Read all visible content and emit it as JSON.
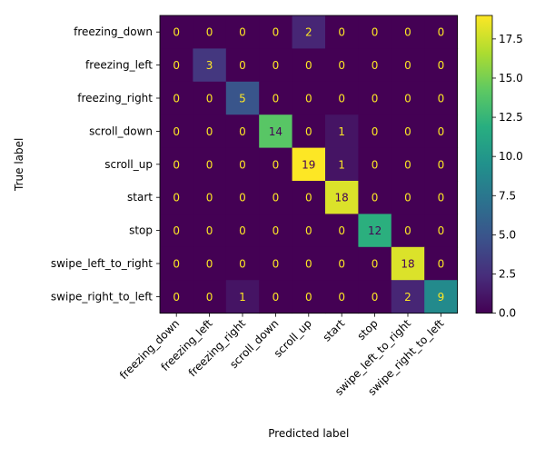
{
  "chart_data": {
    "type": "heatmap",
    "title": "",
    "xlabel": "Predicted label",
    "ylabel": "True label",
    "row_labels": [
      "freezing_down",
      "freezing_left",
      "freezing_right",
      "scroll_down",
      "scroll_up",
      "start",
      "stop",
      "swipe_left_to_right",
      "swipe_right_to_left"
    ],
    "col_labels": [
      "freezing_down",
      "freezing_left",
      "freezing_right",
      "scroll_down",
      "scroll_up",
      "start",
      "stop",
      "swipe_left_to_right",
      "swipe_right_to_left"
    ],
    "values": [
      [
        0,
        0,
        0,
        0,
        2,
        0,
        0,
        0,
        0
      ],
      [
        0,
        3,
        0,
        0,
        0,
        0,
        0,
        0,
        0
      ],
      [
        0,
        0,
        5,
        0,
        0,
        0,
        0,
        0,
        0
      ],
      [
        0,
        0,
        0,
        14,
        0,
        1,
        0,
        0,
        0
      ],
      [
        0,
        0,
        0,
        0,
        19,
        1,
        0,
        0,
        0
      ],
      [
        0,
        0,
        0,
        0,
        0,
        18,
        0,
        0,
        0
      ],
      [
        0,
        0,
        0,
        0,
        0,
        0,
        12,
        0,
        0
      ],
      [
        0,
        0,
        0,
        0,
        0,
        0,
        0,
        18,
        0
      ],
      [
        0,
        0,
        1,
        0,
        0,
        0,
        0,
        2,
        9
      ]
    ],
    "colormap": "viridis",
    "vmin": 0,
    "vmax": 19,
    "colorbar_ticks": [
      "0.0",
      "2.5",
      "5.0",
      "7.5",
      "10.0",
      "12.5",
      "15.0",
      "17.5"
    ],
    "colorbar_tick_values": [
      0,
      2.5,
      5,
      7.5,
      10,
      12.5,
      15,
      17.5
    ],
    "annotation_colors": {
      "on_dark": "#fde725",
      "on_light": "#440154"
    }
  }
}
